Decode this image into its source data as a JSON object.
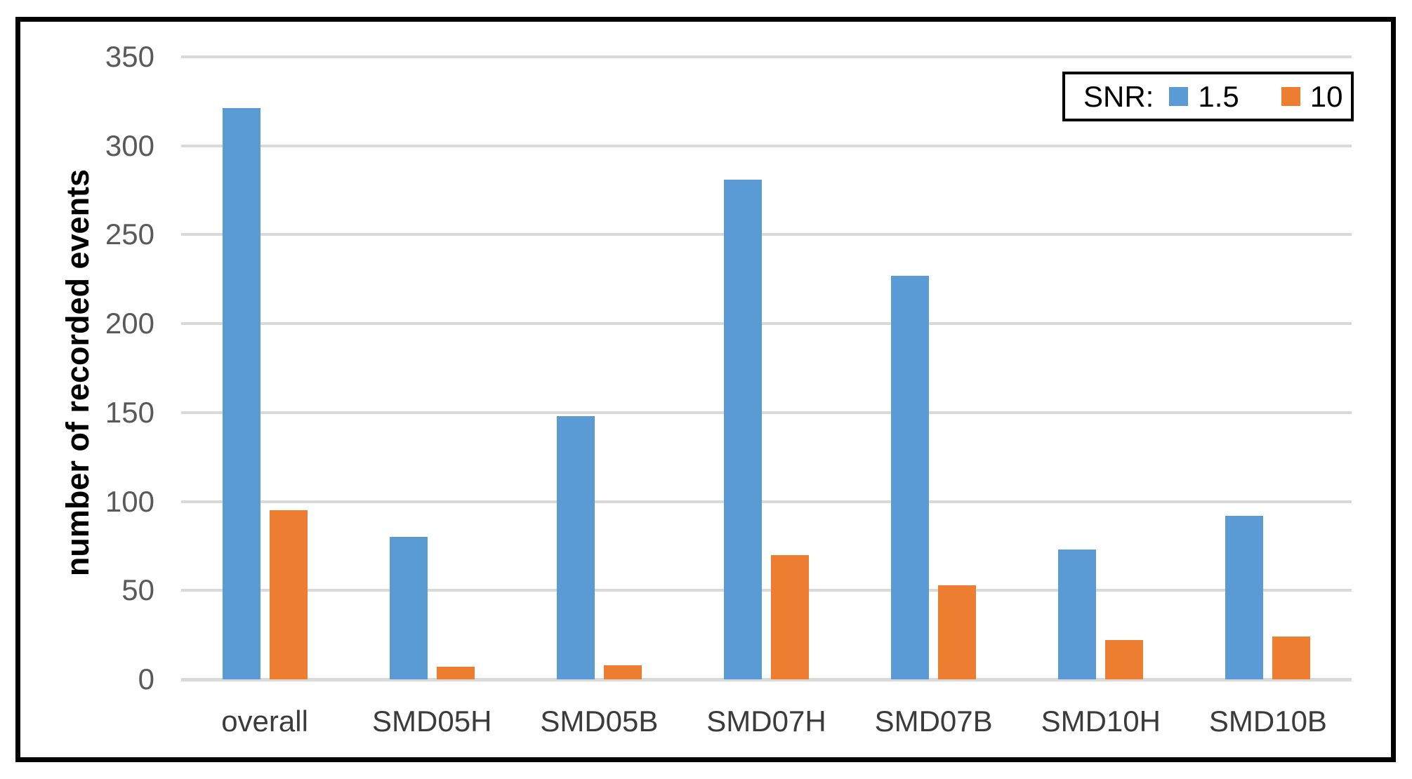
{
  "chart_data": {
    "type": "bar",
    "title": "",
    "categories": [
      "overall",
      "SMD05H",
      "SMD05B",
      "SMD07H",
      "SMD07B",
      "SMD10H",
      "SMD10B"
    ],
    "series": [
      {
        "name": "1.5",
        "color": "#5b9bd5",
        "values": [
          321,
          80,
          148,
          281,
          227,
          73,
          92
        ]
      },
      {
        "name": "10",
        "color": "#ed7d31",
        "values": [
          95,
          7,
          8,
          70,
          53,
          22,
          24
        ]
      }
    ],
    "xlabel": "",
    "ylabel": "number of recorded events",
    "ylim": [
      0,
      350
    ],
    "ytick_step": 50,
    "yticks": [
      0,
      50,
      100,
      150,
      200,
      250,
      300,
      350
    ],
    "grid": "horizontal-only",
    "gridline_color": "#d9d9d9",
    "legend_title": "SNR:",
    "legend_position": "top-right-inside",
    "frame_color": "#000000",
    "background_color": "#ffffff"
  }
}
